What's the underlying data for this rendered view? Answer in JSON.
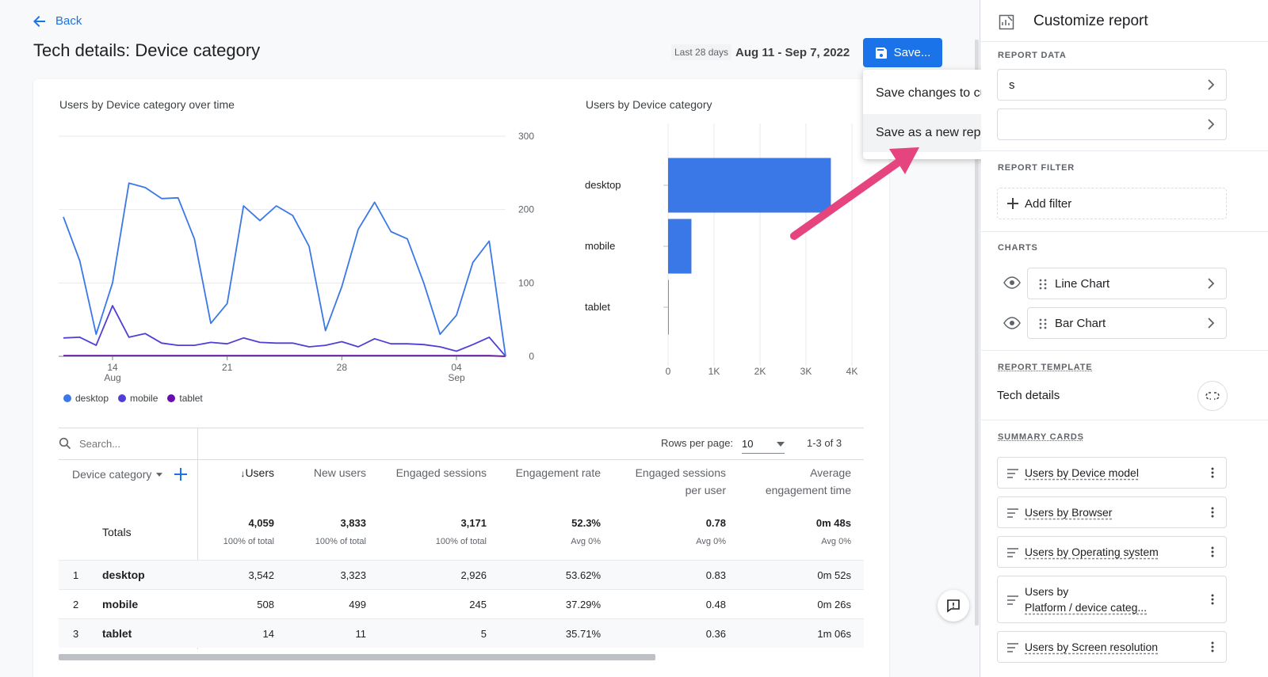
{
  "header": {
    "back_label": "Back",
    "title": "Tech details: Device category",
    "date_badge": "Last 28 days",
    "date_range": "Aug 11 - Sep 7, 2022",
    "save_label": "Save..."
  },
  "save_menu": {
    "items": [
      "Save changes to current report",
      "Save as a new report"
    ]
  },
  "line_chart": {
    "title": "Users by Device category over time",
    "legend": [
      "desktop",
      "mobile",
      "tablet"
    ]
  },
  "bar_chart": {
    "title": "Users by Device category"
  },
  "chart_data": [
    {
      "type": "line",
      "title": "Users by Device category over time",
      "x": [
        "Aug 11",
        "Aug 12",
        "Aug 13",
        "Aug 14",
        "Aug 15",
        "Aug 16",
        "Aug 17",
        "Aug 18",
        "Aug 19",
        "Aug 20",
        "Aug 21",
        "Aug 22",
        "Aug 23",
        "Aug 24",
        "Aug 25",
        "Aug 26",
        "Aug 27",
        "Aug 28",
        "Aug 29",
        "Aug 30",
        "Aug 31",
        "Sep 1",
        "Sep 2",
        "Sep 3",
        "Sep 4",
        "Sep 5",
        "Sep 6",
        "Sep 7"
      ],
      "x_ticks": [
        {
          "label": "14",
          "sub": "Aug",
          "index": 3
        },
        {
          "label": "21",
          "sub": "",
          "index": 10
        },
        {
          "label": "28",
          "sub": "",
          "index": 17
        },
        {
          "label": "04",
          "sub": "Sep",
          "index": 24
        }
      ],
      "series": [
        {
          "name": "desktop",
          "color": "#3b78e7",
          "values": [
            190,
            130,
            30,
            100,
            236,
            230,
            215,
            216,
            160,
            45,
            72,
            205,
            185,
            205,
            192,
            150,
            35,
            95,
            173,
            210,
            170,
            160,
            100,
            30,
            56,
            128,
            157,
            0
          ]
        },
        {
          "name": "mobile",
          "color": "#4f3fd6",
          "values": [
            25,
            26,
            15,
            69,
            26,
            31,
            18,
            15,
            15,
            19,
            17,
            25,
            19,
            18,
            18,
            13,
            15,
            20,
            13,
            24,
            17,
            17,
            16,
            13,
            7,
            16,
            26,
            0
          ]
        },
        {
          "name": "tablet",
          "color": "#6a0dad",
          "values": [
            1,
            1,
            1,
            1,
            1,
            1,
            1,
            1,
            1,
            1,
            1,
            1,
            1,
            1,
            1,
            1,
            1,
            1,
            1,
            1,
            1,
            1,
            1,
            1,
            1,
            1,
            1,
            0
          ]
        }
      ],
      "y_ticks": [
        0,
        100,
        200,
        300
      ],
      "ylim": [
        0,
        300
      ],
      "grid": true,
      "legend_position": "bottom-left"
    },
    {
      "type": "bar",
      "orientation": "horizontal",
      "title": "Users by Device category",
      "categories": [
        "desktop",
        "mobile",
        "tablet"
      ],
      "values": [
        3542,
        508,
        14
      ],
      "color": "#3b78e7",
      "x_ticks": [
        "0",
        "1K",
        "2K",
        "3K",
        "4K"
      ],
      "xlim": [
        0,
        4000
      ],
      "grid": true
    }
  ],
  "table": {
    "search_placeholder": "Search...",
    "rows_per_page_label": "Rows per page:",
    "rows_per_page_value": "10",
    "pagination": "1-3 of 3",
    "dimension_header": "Device category",
    "columns": [
      {
        "l1": "Users",
        "l2": ""
      },
      {
        "l1": "New users",
        "l2": ""
      },
      {
        "l1": "Engaged sessions",
        "l2": ""
      },
      {
        "l1": "Engagement rate",
        "l2": ""
      },
      {
        "l1": "Engaged sessions",
        "l2": "per user"
      },
      {
        "l1": "Average",
        "l2": "engagement time"
      }
    ],
    "totals_label": "Totals",
    "totals": [
      {
        "v": "4,059",
        "s": "100% of total"
      },
      {
        "v": "3,833",
        "s": "100% of total"
      },
      {
        "v": "3,171",
        "s": "100% of total"
      },
      {
        "v": "52.3%",
        "s": "Avg 0%"
      },
      {
        "v": "0.78",
        "s": "Avg 0%"
      },
      {
        "v": "0m 48s",
        "s": "Avg 0%"
      }
    ],
    "rows": [
      {
        "idx": "1",
        "name": "desktop",
        "vals": [
          "3,542",
          "3,323",
          "2,926",
          "53.62%",
          "0.83",
          "0m 52s"
        ]
      },
      {
        "idx": "2",
        "name": "mobile",
        "vals": [
          "508",
          "499",
          "245",
          "37.29%",
          "0.48",
          "0m 26s"
        ]
      },
      {
        "idx": "3",
        "name": "tablet",
        "vals": [
          "14",
          "11",
          "5",
          "35.71%",
          "0.36",
          "1m 06s"
        ]
      }
    ]
  },
  "panel": {
    "title": "Customize report",
    "report_data_label": "REPORT DATA",
    "report_data_items": [
      "s",
      ""
    ],
    "report_filter_label": "REPORT FILTER",
    "add_filter_label": "Add filter",
    "charts_label": "CHARTS",
    "charts": [
      "Line Chart",
      "Bar Chart"
    ],
    "report_template_label": "REPORT TEMPLATE",
    "template_name": "Tech details",
    "summary_cards_label": "SUMMARY CARDS",
    "summary_cards": [
      "Users by Device model",
      "Users by Browser",
      "Users by Operating system",
      "Users by",
      "Platform / device categ...",
      "Users by Screen resolution"
    ]
  }
}
